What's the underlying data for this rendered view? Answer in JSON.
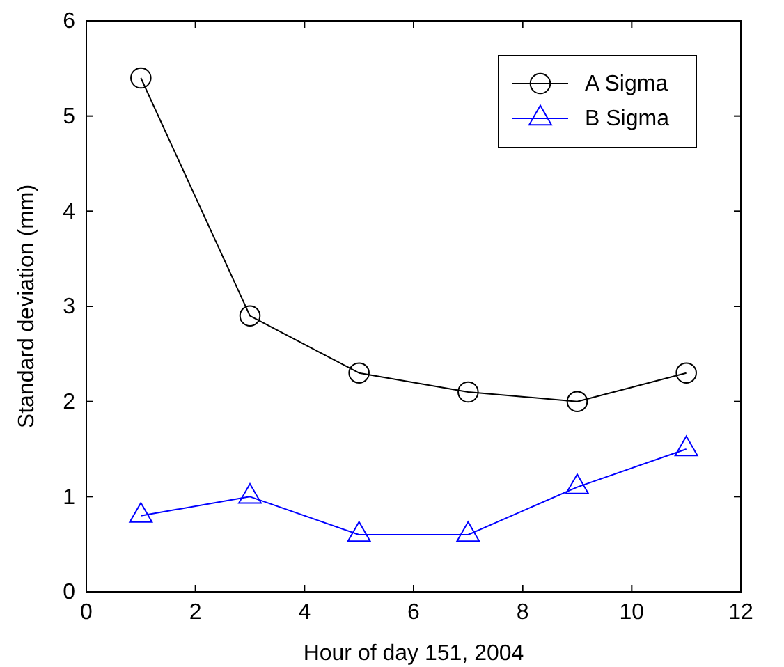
{
  "chart_data": {
    "type": "line",
    "xlabel": "Hour of day 151, 2004",
    "ylabel": "Standard deviation (mm)",
    "x": [
      1,
      3,
      5,
      7,
      9,
      11
    ],
    "series": [
      {
        "name": "A Sigma",
        "color": "#000000",
        "marker": "circle",
        "values": [
          5.4,
          2.9,
          2.3,
          2.1,
          2.0,
          2.3
        ]
      },
      {
        "name": "B Sigma",
        "color": "#0000ff",
        "marker": "triangle",
        "values": [
          0.8,
          1.0,
          0.6,
          0.6,
          1.1,
          1.5
        ]
      }
    ],
    "xlim": [
      0,
      12
    ],
    "xticks": [
      0,
      2,
      4,
      6,
      8,
      10,
      12
    ],
    "ylim": [
      0,
      6
    ],
    "yticks": [
      0,
      1,
      2,
      3,
      4,
      5,
      6
    ],
    "grid": false,
    "legend": "top right",
    "line_style": "solid"
  }
}
